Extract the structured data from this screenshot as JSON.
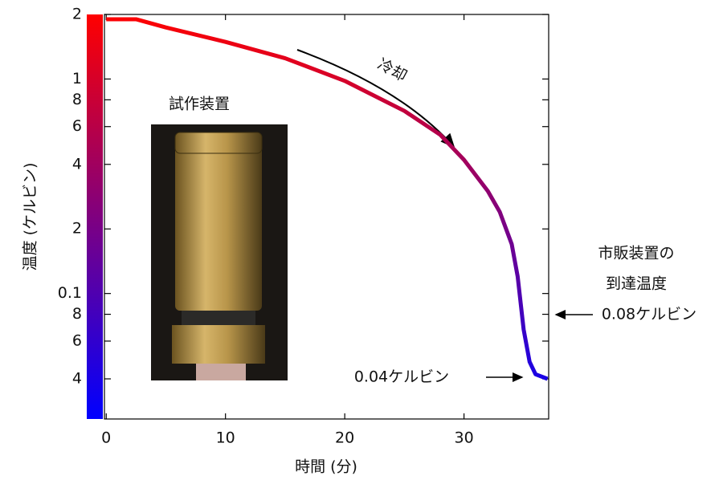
{
  "chart_data": {
    "type": "line",
    "x_label": "時間 (分)",
    "y_label": "温度 (ケルビン)",
    "x": [
      0,
      2.5,
      5,
      10,
      15,
      20,
      25,
      28,
      30,
      32,
      33,
      34,
      34.5,
      35,
      35.5,
      36,
      37
    ],
    "series": [
      {
        "values": [
          1.9,
          1.9,
          1.74,
          1.49,
          1.25,
          0.98,
          0.71,
          0.55,
          0.42,
          0.3,
          0.24,
          0.17,
          0.12,
          0.068,
          0.048,
          0.042,
          0.04
        ]
      }
    ],
    "color_scale": [
      "#ff0000",
      "#0000ff"
    ],
    "log_y": true,
    "xlim": [
      -0.15,
      37.1
    ],
    "ylim": [
      0.026,
      2
    ],
    "xticks": [
      0,
      10,
      20,
      30
    ],
    "yticks": [
      2,
      1,
      {
        "value": 0.8,
        "label": "8"
      },
      {
        "value": 0.6,
        "label": "6"
      },
      {
        "value": 0.4,
        "label": "4"
      },
      {
        "value": 0.2,
        "label": "2"
      },
      0.1,
      {
        "value": 0.08,
        "label": "8"
      },
      {
        "value": 0.06,
        "label": "6"
      },
      {
        "value": 0.04,
        "label": "4"
      }
    ],
    "annotations": [
      "冷却",
      "試作装置",
      "市販装置の",
      "到達温度",
      "0.08ケルビン",
      "0.04ケルビン"
    ]
  }
}
